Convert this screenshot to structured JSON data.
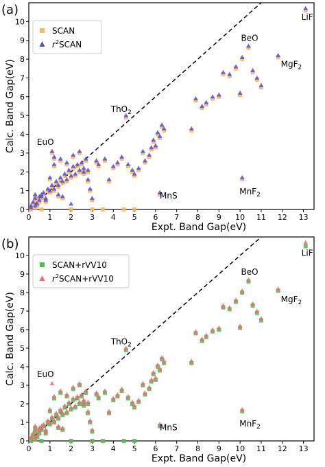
{
  "chart_data": [
    {
      "type": "scatter",
      "panel_label": "(a)",
      "title": "",
      "xlabel": "Expt. Band Gap(eV)",
      "ylabel": "Calc. Band Gap(eV)",
      "xlim": [
        0,
        13.5
      ],
      "ylim": [
        0,
        11
      ],
      "xticks": [
        0,
        1,
        2,
        3,
        4,
        5,
        6,
        7,
        8,
        9,
        10,
        11,
        12,
        13
      ],
      "yticks": [
        0,
        1,
        2,
        3,
        4,
        5,
        6,
        7,
        8,
        9,
        10
      ],
      "grid": false,
      "legend_position": "top-left",
      "reference_line": "y = x, dashed",
      "series": [
        {
          "name": "SCAN",
          "marker": "square",
          "color": "#f8b865",
          "x": [
            0.1,
            0.2,
            0.3,
            0.4,
            0.5,
            0.6,
            0.7,
            0.8,
            0.9,
            1.0,
            1.1,
            1.2,
            1.3,
            1.4,
            1.5,
            1.6,
            1.7,
            1.8,
            1.9,
            2.0,
            2.1,
            2.2,
            2.3,
            2.4,
            2.5,
            2.6,
            2.7,
            2.8,
            2.9,
            3.0,
            0.3,
            0.5,
            0.8,
            1.0,
            1.2,
            1.5,
            1.8,
            2.1,
            2.4,
            2.8,
            3.2,
            3.6,
            4.0,
            4.4,
            4.7,
            5.0,
            5.2,
            5.5,
            5.7,
            5.8,
            5.9,
            6.0,
            6.1,
            6.2,
            6.3,
            6.4,
            7.7,
            7.9,
            8.2,
            8.4,
            8.7,
            9.0,
            9.2,
            9.5,
            9.8,
            10.0,
            10.1,
            10.4,
            10.6,
            10.8,
            11.0,
            11.8,
            13.1,
            4.6,
            1.1,
            1.2,
            6.2,
            10.1,
            0.1,
            0.3,
            0.6,
            2.0,
            3.0,
            3.5,
            4.5,
            5.0,
            1.4,
            1.6,
            2.6,
            3.3,
            3.8,
            4.2,
            4.9,
            5.4
          ],
          "y": [
            0.0,
            0.3,
            0.5,
            0.2,
            0.4,
            0.6,
            0.8,
            0.5,
            1.0,
            0.9,
            1.2,
            1.0,
            1.4,
            1.2,
            1.6,
            1.4,
            1.8,
            1.5,
            2.0,
            1.7,
            2.2,
            1.8,
            2.3,
            2.0,
            2.4,
            2.1,
            2.6,
            1.5,
            1.0,
            0.5,
            0.7,
            0.6,
            0.4,
            1.6,
            2.3,
            2.6,
            2.4,
            2.8,
            3.0,
            2.0,
            2.5,
            2.6,
            2.2,
            2.7,
            2.3,
            1.8,
            2.1,
            2.5,
            2.8,
            3.2,
            3.6,
            3.3,
            4.0,
            3.8,
            4.4,
            4.2,
            4.2,
            5.8,
            5.4,
            5.6,
            5.9,
            6.0,
            7.2,
            7.1,
            7.5,
            6.1,
            8.0,
            8.6,
            7.3,
            6.9,
            6.5,
            8.1,
            10.6,
            4.9,
            3.0,
            2.7,
            0.8,
            1.6,
            0.1,
            0.1,
            0.0,
            0.0,
            0.0,
            0.0,
            0.0,
            0.0,
            0.7,
            0.6,
            1.9,
            2.3,
            1.5,
            2.4,
            2.0,
            3.0
          ]
        },
        {
          "name": "r²SCAN",
          "marker": "triangle",
          "color": "#5151d8",
          "x": [
            0.1,
            0.2,
            0.3,
            0.4,
            0.5,
            0.6,
            0.7,
            0.8,
            0.9,
            1.0,
            1.1,
            1.2,
            1.3,
            1.4,
            1.5,
            1.6,
            1.7,
            1.8,
            1.9,
            2.0,
            2.1,
            2.2,
            2.3,
            2.4,
            2.5,
            2.6,
            2.7,
            2.8,
            2.9,
            3.0,
            0.3,
            0.5,
            0.8,
            1.0,
            1.2,
            1.5,
            1.8,
            2.1,
            2.4,
            2.8,
            3.2,
            3.6,
            4.0,
            4.4,
            4.7,
            5.0,
            5.2,
            5.5,
            5.7,
            5.8,
            5.9,
            6.0,
            6.1,
            6.2,
            6.3,
            6.4,
            7.7,
            7.9,
            8.2,
            8.4,
            8.7,
            9.0,
            9.2,
            9.5,
            9.8,
            10.0,
            10.1,
            10.4,
            10.6,
            10.8,
            11.0,
            11.8,
            13.1,
            4.6,
            1.1,
            1.2,
            6.2,
            10.1,
            0.1,
            0.3,
            0.6,
            2.0,
            1.4,
            1.6,
            2.6,
            3.3,
            3.8,
            4.2,
            4.9,
            5.4
          ],
          "y": [
            0.1,
            0.4,
            0.6,
            0.3,
            0.5,
            0.7,
            0.9,
            0.6,
            1.1,
            1.0,
            1.3,
            1.1,
            1.5,
            1.3,
            1.7,
            1.5,
            1.9,
            1.6,
            2.1,
            1.8,
            2.3,
            1.9,
            2.4,
            2.1,
            2.5,
            2.2,
            2.7,
            1.6,
            1.1,
            0.6,
            0.8,
            0.7,
            0.5,
            1.7,
            2.4,
            2.7,
            2.5,
            2.9,
            3.1,
            2.1,
            2.6,
            2.7,
            2.3,
            2.8,
            2.4,
            1.9,
            2.2,
            2.6,
            2.9,
            3.3,
            3.7,
            3.4,
            4.1,
            3.9,
            4.5,
            4.3,
            4.3,
            5.9,
            5.5,
            5.7,
            6.0,
            6.1,
            7.3,
            7.2,
            7.6,
            6.2,
            8.1,
            8.7,
            7.4,
            7.0,
            6.6,
            8.2,
            10.7,
            5.0,
            3.1,
            2.8,
            0.9,
            1.7,
            0.2,
            0.2,
            0.8,
            0.3,
            0.8,
            0.7,
            2.0,
            2.4,
            1.6,
            2.5,
            2.1,
            3.1
          ]
        }
      ],
      "annotations": [
        {
          "text": "LiF",
          "x": 13.1,
          "y": 10.6
        },
        {
          "text": "BeO",
          "x": 10.5,
          "y": 8.6
        },
        {
          "text": "MgF₂",
          "x": 11.8,
          "y": 8.1
        },
        {
          "text": "ThO₂",
          "x": 4.6,
          "y": 4.9
        },
        {
          "text": "EuO",
          "x": 1.1,
          "y": 3.0
        },
        {
          "text": "MnS",
          "x": 6.2,
          "y": 0.8
        },
        {
          "text": "MnF₂",
          "x": 10.1,
          "y": 1.6
        }
      ]
    },
    {
      "type": "scatter",
      "panel_label": "(b)",
      "title": "",
      "xlabel": "Expt. Band Gap(eV)",
      "ylabel": "Calc. Band Gap(eV)",
      "xlim": [
        0,
        13.5
      ],
      "ylim": [
        0,
        11
      ],
      "xticks": [
        0,
        1,
        2,
        3,
        4,
        5,
        6,
        7,
        8,
        9,
        10,
        11,
        12,
        13
      ],
      "yticks": [
        0,
        1,
        2,
        3,
        4,
        5,
        6,
        7,
        8,
        9,
        10
      ],
      "grid": false,
      "legend_position": "top-left",
      "reference_line": "y = x, dashed",
      "series": [
        {
          "name": "SCAN+rVV10",
          "marker": "square",
          "color": "#5cb85c",
          "x": [
            0.1,
            0.2,
            0.3,
            0.4,
            0.5,
            0.6,
            0.7,
            0.8,
            0.9,
            1.0,
            1.1,
            1.2,
            1.3,
            1.4,
            1.5,
            1.6,
            1.7,
            1.8,
            1.9,
            2.0,
            2.1,
            2.2,
            2.3,
            2.4,
            2.5,
            2.6,
            2.7,
            2.8,
            2.9,
            3.0,
            0.3,
            0.5,
            0.8,
            1.0,
            1.2,
            1.5,
            1.8,
            2.1,
            2.4,
            2.8,
            3.2,
            3.6,
            4.0,
            4.4,
            4.7,
            5.0,
            5.2,
            5.5,
            5.7,
            5.8,
            5.9,
            6.0,
            6.1,
            6.2,
            6.3,
            6.4,
            7.7,
            7.9,
            8.2,
            8.4,
            8.7,
            9.0,
            9.2,
            9.5,
            9.8,
            10.0,
            10.1,
            10.4,
            10.6,
            10.8,
            11.0,
            11.8,
            13.1,
            4.6,
            6.2,
            10.1,
            0.1,
            0.3,
            0.6,
            2.0,
            3.0,
            3.5,
            4.5,
            5.0,
            1.4,
            1.6,
            2.6,
            3.3,
            3.8,
            4.2,
            4.9,
            5.4
          ],
          "y": [
            0.0,
            0.3,
            0.5,
            0.2,
            0.4,
            0.6,
            0.8,
            0.5,
            1.0,
            0.9,
            1.2,
            1.0,
            1.4,
            1.2,
            1.6,
            1.4,
            1.8,
            1.5,
            2.0,
            1.7,
            2.2,
            1.8,
            2.3,
            2.0,
            2.4,
            2.1,
            2.6,
            1.5,
            1.0,
            0.5,
            0.7,
            0.6,
            0.4,
            1.6,
            2.3,
            2.6,
            2.4,
            2.8,
            3.0,
            2.0,
            2.5,
            2.6,
            2.2,
            2.7,
            2.3,
            1.8,
            2.1,
            2.5,
            2.8,
            3.2,
            3.6,
            3.3,
            4.0,
            3.8,
            4.4,
            4.2,
            4.2,
            5.8,
            5.4,
            5.6,
            5.9,
            6.0,
            7.2,
            7.1,
            7.5,
            6.1,
            8.0,
            8.6,
            7.3,
            6.9,
            6.5,
            8.1,
            10.5,
            4.9,
            0.8,
            1.6,
            0.1,
            0.1,
            0.0,
            0.0,
            0.0,
            0.0,
            0.0,
            0.0,
            0.7,
            0.6,
            1.9,
            2.3,
            1.5,
            2.4,
            2.0,
            3.0
          ]
        },
        {
          "name": "r²SCAN+rVV10",
          "marker": "triangle",
          "color": "#e87070",
          "x": [
            0.1,
            0.2,
            0.3,
            0.4,
            0.5,
            0.6,
            0.7,
            0.8,
            0.9,
            1.0,
            1.1,
            1.2,
            1.3,
            1.4,
            1.5,
            1.6,
            1.7,
            1.8,
            1.9,
            2.0,
            2.1,
            2.2,
            2.3,
            2.4,
            2.5,
            2.6,
            2.7,
            2.8,
            2.9,
            3.0,
            0.3,
            0.5,
            0.8,
            1.0,
            1.2,
            1.5,
            1.8,
            2.1,
            2.4,
            2.8,
            3.2,
            3.6,
            4.0,
            4.4,
            4.7,
            5.0,
            5.2,
            5.5,
            5.7,
            5.8,
            5.9,
            6.0,
            6.1,
            6.2,
            6.3,
            6.4,
            7.7,
            7.9,
            8.2,
            8.4,
            8.7,
            9.0,
            9.2,
            9.5,
            9.8,
            10.0,
            10.1,
            10.4,
            10.6,
            10.8,
            11.0,
            11.8,
            13.1,
            4.6,
            1.1,
            6.2,
            10.1,
            0.1,
            0.3,
            0.6,
            1.4,
            1.6,
            2.6,
            3.3,
            3.8,
            4.2,
            4.9,
            5.4
          ],
          "y": [
            0.1,
            0.4,
            0.6,
            0.3,
            0.5,
            0.7,
            0.9,
            0.6,
            1.1,
            1.0,
            1.3,
            1.1,
            1.5,
            1.3,
            1.7,
            1.5,
            1.9,
            1.6,
            2.1,
            1.8,
            2.3,
            1.9,
            2.4,
            2.1,
            2.5,
            2.2,
            2.7,
            1.6,
            1.1,
            0.6,
            0.8,
            0.7,
            0.5,
            1.7,
            2.4,
            2.7,
            2.5,
            2.9,
            3.1,
            2.1,
            2.6,
            2.7,
            2.3,
            2.8,
            2.4,
            1.9,
            2.2,
            2.6,
            2.9,
            3.3,
            3.7,
            3.4,
            4.1,
            3.9,
            4.5,
            4.3,
            4.3,
            5.9,
            5.5,
            5.7,
            6.0,
            6.1,
            7.3,
            7.2,
            7.6,
            6.2,
            8.1,
            8.7,
            7.4,
            7.0,
            6.6,
            8.2,
            10.7,
            5.0,
            3.1,
            0.9,
            1.7,
            0.2,
            0.2,
            0.8,
            0.8,
            0.7,
            2.0,
            2.4,
            1.6,
            2.5,
            2.1,
            3.1
          ]
        }
      ],
      "annotations": [
        {
          "text": "LiF",
          "x": 13.1,
          "y": 10.5
        },
        {
          "text": "BeO",
          "x": 10.5,
          "y": 8.6
        },
        {
          "text": "MgF₂",
          "x": 11.8,
          "y": 8.0
        },
        {
          "text": "ThO₂",
          "x": 4.6,
          "y": 4.9
        },
        {
          "text": "EuO",
          "x": 1.1,
          "y": 3.0
        },
        {
          "text": "MnS",
          "x": 6.2,
          "y": 0.8
        },
        {
          "text": "MnF₂",
          "x": 10.1,
          "y": 1.6
        }
      ]
    }
  ]
}
